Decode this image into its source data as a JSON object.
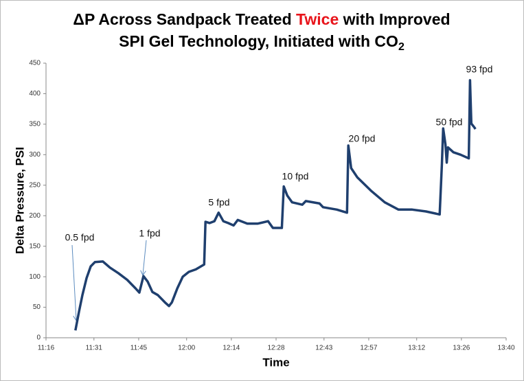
{
  "chart_data": {
    "type": "line",
    "title_line1": {
      "before": "ΔP Across Sandpack Treated ",
      "highlight": "Twice",
      "after": " with Improved",
      "highlight_color": "#e8141b"
    },
    "title_line2": {
      "text": "SPI Gel Technology, Initiated with CO",
      "subscript": "2"
    },
    "x_label": "Time",
    "y_label": "Delta Pressure, PSI",
    "xlim": [
      "11:16",
      "13:40"
    ],
    "xticks": [
      "11:16",
      "11:31",
      "11:45",
      "12:00",
      "12:14",
      "12:28",
      "12:43",
      "12:57",
      "13:12",
      "13:26",
      "13:40"
    ],
    "ylim": [
      0,
      450
    ],
    "yticks": [
      0,
      50,
      100,
      150,
      200,
      250,
      300,
      350,
      400,
      450
    ],
    "grid": false,
    "series": [
      {
        "name": "Delta Pressure",
        "color": "#1f3f6e",
        "x": [
          "11:25:12",
          "11:26:18",
          "11:27:24",
          "11:28:42",
          "11:30:00",
          "11:31:18",
          "11:33:48",
          "11:36:00",
          "11:38:36",
          "11:41:24",
          "11:44:00",
          "11:45:12",
          "11:46:30",
          "11:47:48",
          "11:49:18",
          "11:51:00",
          "11:53:12",
          "11:54:30",
          "11:55:24",
          "11:57:06",
          "11:58:48",
          "12:00:42",
          "12:02:54",
          "12:05:30",
          "12:05:54",
          "12:07:12",
          "12:08:42",
          "12:10:00",
          "12:11:30",
          "12:13:00",
          "12:14:42",
          "12:16:00",
          "12:19:00",
          "12:22:12",
          "12:25:30",
          "12:27:00",
          "12:29:48",
          "12:30:24",
          "12:31:30",
          "12:33:00",
          "12:36:12",
          "12:37:18",
          "12:41:36",
          "12:42:42",
          "12:47:00",
          "12:50:12",
          "12:50:36",
          "12:51:30",
          "12:53:24",
          "12:57:42",
          "13:02:00",
          "13:06:18",
          "13:10:36",
          "13:14:54",
          "13:19:12",
          "13:19:54",
          "13:20:18",
          "13:21:00",
          "13:21:24",
          "13:21:48",
          "13:23:30",
          "13:25:42",
          "13:28:18",
          "13:28:42",
          "13:29:06",
          "13:30:00",
          "13:30:24"
        ],
        "values": [
          12,
          42,
          70,
          98,
          117,
          124,
          125,
          115,
          106,
          95,
          81,
          74,
          101,
          92,
          75,
          70,
          58,
          52,
          58,
          81,
          100,
          108,
          112,
          120,
          190,
          188,
          191,
          205,
          191,
          188,
          184,
          193,
          187,
          187,
          191,
          180,
          180,
          248,
          233,
          222,
          218,
          224,
          220,
          214,
          210,
          205,
          315,
          278,
          263,
          241,
          222,
          210,
          210,
          207,
          202,
          286,
          343,
          317,
          287,
          312,
          304,
          300,
          294,
          422,
          351,
          345,
          342
        ]
      }
    ],
    "annotations": [
      "0.5 fpd",
      "1 fpd",
      "5 fpd",
      "10 fpd",
      "20 fpd",
      "50 fpd",
      "93 fpd"
    ]
  }
}
